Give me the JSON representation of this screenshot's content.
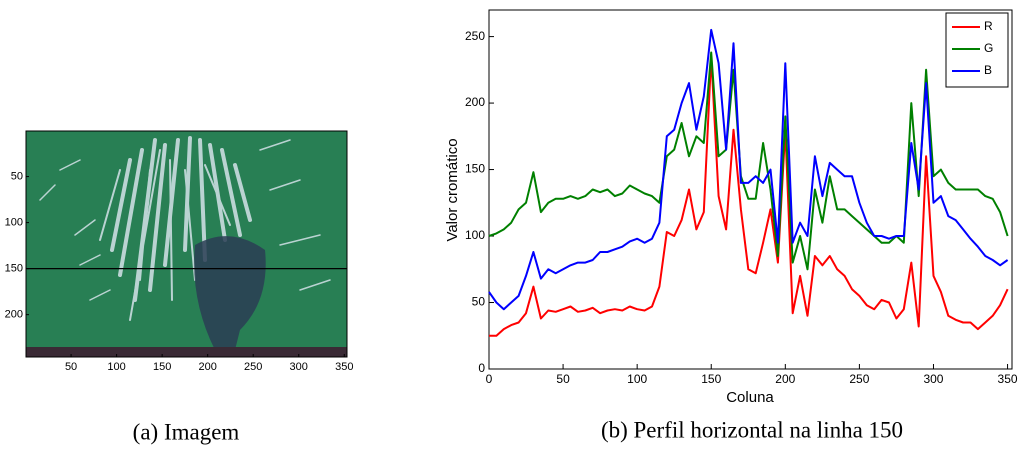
{
  "chart_data": [
    {
      "type": "image",
      "caption": "(a) Imagem",
      "xlim": [
        0.5,
        353
      ],
      "ylim": [
        0.5,
        246
      ],
      "xticks": [
        50,
        100,
        150,
        200,
        250,
        300,
        350
      ],
      "yticks": [
        50,
        100,
        150,
        200
      ],
      "profile_row": 150
    },
    {
      "type": "line",
      "caption": "(b) Perfil horizontal na linha 150",
      "xlabel": "Coluna",
      "ylabel": "Valor cromático",
      "xlim": [
        0,
        353
      ],
      "ylim": [
        0,
        270
      ],
      "xticks": [
        0,
        50,
        100,
        150,
        200,
        250,
        300,
        350
      ],
      "yticks": [
        0,
        50,
        100,
        150,
        200,
        250
      ],
      "legend": "upper right",
      "x": [
        0,
        5,
        10,
        15,
        20,
        25,
        30,
        35,
        40,
        45,
        50,
        55,
        60,
        65,
        70,
        75,
        80,
        85,
        90,
        95,
        100,
        105,
        110,
        115,
        120,
        125,
        130,
        135,
        140,
        145,
        150,
        155,
        160,
        165,
        170,
        175,
        180,
        185,
        190,
        195,
        200,
        205,
        210,
        215,
        220,
        225,
        230,
        235,
        240,
        245,
        250,
        255,
        260,
        265,
        270,
        275,
        280,
        285,
        290,
        295,
        300,
        305,
        310,
        315,
        320,
        325,
        330,
        335,
        340,
        345,
        350
      ],
      "series": [
        {
          "name": "R",
          "color": "#ff0000",
          "values": [
            25,
            25,
            30,
            33,
            35,
            42,
            62,
            38,
            44,
            43,
            45,
            47,
            43,
            44,
            46,
            42,
            44,
            45,
            44,
            47,
            45,
            44,
            47,
            62,
            103,
            100,
            112,
            135,
            105,
            118,
            235,
            130,
            105,
            180,
            120,
            75,
            72,
            95,
            120,
            80,
            180,
            42,
            70,
            40,
            85,
            78,
            85,
            75,
            70,
            60,
            55,
            48,
            45,
            52,
            50,
            38,
            45,
            80,
            32,
            160,
            70,
            58,
            40,
            37,
            35,
            35,
            30,
            35,
            40,
            48,
            60
          ]
        },
        {
          "name": "G",
          "color": "#008000",
          "values": [
            100,
            102,
            105,
            110,
            120,
            125,
            148,
            118,
            125,
            128,
            128,
            130,
            128,
            130,
            135,
            133,
            135,
            130,
            132,
            138,
            135,
            132,
            130,
            125,
            160,
            165,
            185,
            160,
            175,
            170,
            238,
            160,
            165,
            225,
            145,
            128,
            128,
            170,
            135,
            85,
            190,
            80,
            100,
            75,
            135,
            110,
            145,
            120,
            120,
            115,
            110,
            105,
            100,
            95,
            95,
            100,
            95,
            200,
            130,
            225,
            145,
            150,
            140,
            135,
            135,
            135,
            135,
            130,
            128,
            118,
            100
          ]
        },
        {
          "name": "B",
          "color": "#0000ff",
          "values": [
            58,
            50,
            45,
            50,
            55,
            70,
            88,
            68,
            75,
            72,
            75,
            78,
            80,
            80,
            82,
            88,
            88,
            90,
            92,
            96,
            98,
            95,
            98,
            110,
            175,
            180,
            200,
            215,
            180,
            205,
            255,
            230,
            165,
            245,
            140,
            140,
            145,
            140,
            150,
            95,
            230,
            95,
            110,
            100,
            160,
            130,
            155,
            150,
            145,
            145,
            125,
            110,
            100,
            100,
            98,
            100,
            100,
            170,
            135,
            215,
            125,
            130,
            115,
            112,
            105,
            98,
            92,
            85,
            82,
            78,
            82
          ]
        }
      ]
    }
  ]
}
